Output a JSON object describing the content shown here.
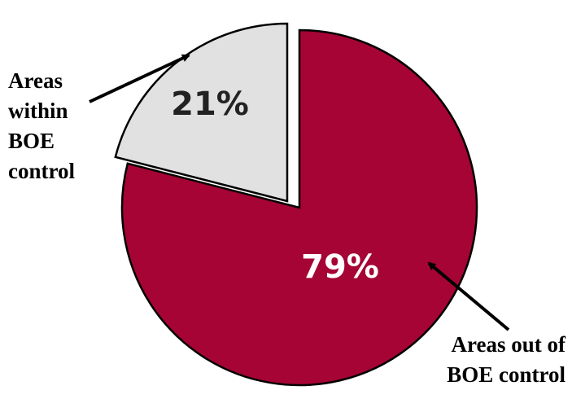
{
  "chart_data": {
    "type": "pie",
    "title": "",
    "slices": [
      {
        "label": "Areas within BOE control",
        "value": 21,
        "value_label": "21%",
        "color": "#e1e1e1",
        "text_color": "#222222",
        "exploded": true,
        "callout_lines": [
          "Areas",
          "within",
          "BOE",
          "control"
        ]
      },
      {
        "label": "Areas out of BOE control",
        "value": 79,
        "value_label": "79%",
        "color": "#a50434",
        "text_color": "#ffffff",
        "exploded": false,
        "callout_lines": [
          "Areas out of",
          "BOE control"
        ]
      }
    ],
    "start_angle_deg": 0,
    "direction": "counterclockwise",
    "outline_color": "#000000"
  }
}
